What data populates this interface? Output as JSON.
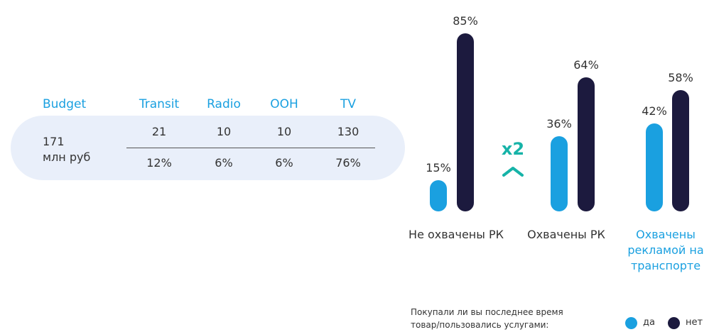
{
  "table": {
    "headers": [
      "Budget",
      "Transit",
      "Radio",
      "OOH",
      "TV"
    ],
    "budget": [
      "171",
      "млн руб"
    ],
    "rows": [
      [
        "21",
        "10",
        "10",
        "130"
      ],
      [
        "12%",
        "6%",
        "6%",
        "76%"
      ]
    ]
  },
  "chart_data": {
    "type": "bar",
    "categories": [
      "Не охвачены РК",
      "Охвачены РК",
      "Охвачены рекламой на транспорте"
    ],
    "category_colors": [
      "#333333",
      "#333333",
      "#1aa0e0"
    ],
    "series": [
      {
        "name": "да",
        "color": "#1aa0e0",
        "values": [
          15,
          36,
          42
        ],
        "value_labels": [
          "15%",
          "36%",
          "42%"
        ]
      },
      {
        "name": "нет",
        "color": "#1c1a3e",
        "values": [
          85,
          64,
          58
        ],
        "value_labels": [
          "85%",
          "64%",
          "58%"
        ]
      }
    ],
    "annotation": "x2",
    "annotation_color": "#16b3a8",
    "legend_title": "Покупали ли вы последнее время товар/пользовались услугами:"
  }
}
